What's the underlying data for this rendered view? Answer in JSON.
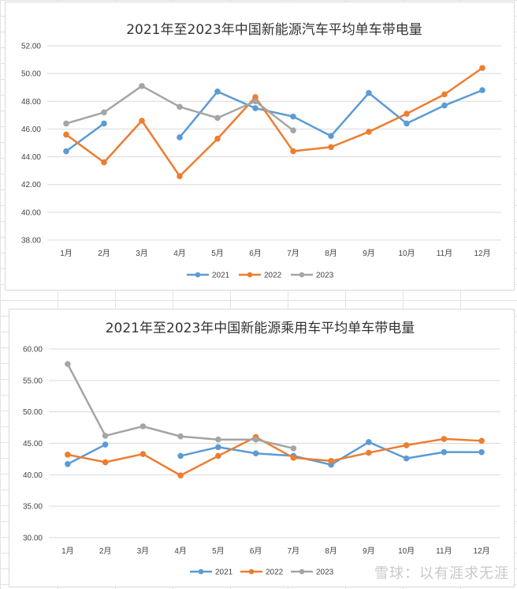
{
  "colors": {
    "2021": "#5B9BD5",
    "2022": "#ED7D31",
    "2023": "#A5A5A5",
    "gridline": "#d9d9d9"
  },
  "watermark": "雪球：以有涯求无涯",
  "chart_data": [
    {
      "type": "line",
      "title": "2021年至2023年中国新能源汽车平均单车带电量",
      "categories": [
        "1月",
        "2月",
        "3月",
        "4月",
        "5月",
        "6月",
        "7月",
        "8月",
        "9月",
        "10月",
        "11月",
        "12月"
      ],
      "series": [
        {
          "name": "2021",
          "color": "#5B9BD5",
          "values": [
            44.4,
            46.4,
            null,
            45.4,
            48.7,
            47.5,
            46.9,
            45.5,
            48.6,
            46.4,
            47.7,
            48.8
          ]
        },
        {
          "name": "2022",
          "color": "#ED7D31",
          "values": [
            45.6,
            43.6,
            46.6,
            42.6,
            45.3,
            48.3,
            44.4,
            44.7,
            45.8,
            47.1,
            48.5,
            50.4
          ]
        },
        {
          "name": "2023",
          "color": "#A5A5A5",
          "values": [
            46.4,
            47.2,
            49.1,
            47.6,
            46.8,
            48.0,
            45.9,
            null,
            null,
            null,
            null,
            null
          ]
        }
      ],
      "yticks": [
        "38.00",
        "40.00",
        "42.00",
        "44.00",
        "46.00",
        "48.00",
        "50.00",
        "52.00"
      ],
      "ylim": [
        38,
        52
      ],
      "grid": true,
      "legend": "bottom"
    },
    {
      "type": "line",
      "title": "2021年至2023年中国新能源乘用车平均单车带电量",
      "categories": [
        "1月",
        "2月",
        "3月",
        "4月",
        "5月",
        "6月",
        "7月",
        "8月",
        "9月",
        "10月",
        "11月",
        "12月"
      ],
      "series": [
        {
          "name": "2021",
          "color": "#5B9BD5",
          "values": [
            41.7,
            44.8,
            null,
            43.0,
            44.4,
            43.4,
            43.0,
            41.6,
            45.2,
            42.6,
            43.6,
            43.6
          ]
        },
        {
          "name": "2022",
          "color": "#ED7D31",
          "values": [
            43.2,
            42.0,
            43.3,
            39.9,
            43.0,
            46.0,
            42.7,
            42.2,
            43.5,
            44.7,
            45.7,
            45.4
          ]
        },
        {
          "name": "2023",
          "color": "#A5A5A5",
          "values": [
            57.6,
            46.2,
            47.7,
            46.1,
            45.6,
            45.6,
            44.2,
            null,
            null,
            null,
            null,
            null
          ]
        }
      ],
      "yticks": [
        "30.00",
        "35.00",
        "40.00",
        "45.00",
        "50.00",
        "55.00",
        "60.00"
      ],
      "ylim": [
        30,
        60
      ],
      "grid": true,
      "legend": "bottom"
    }
  ]
}
